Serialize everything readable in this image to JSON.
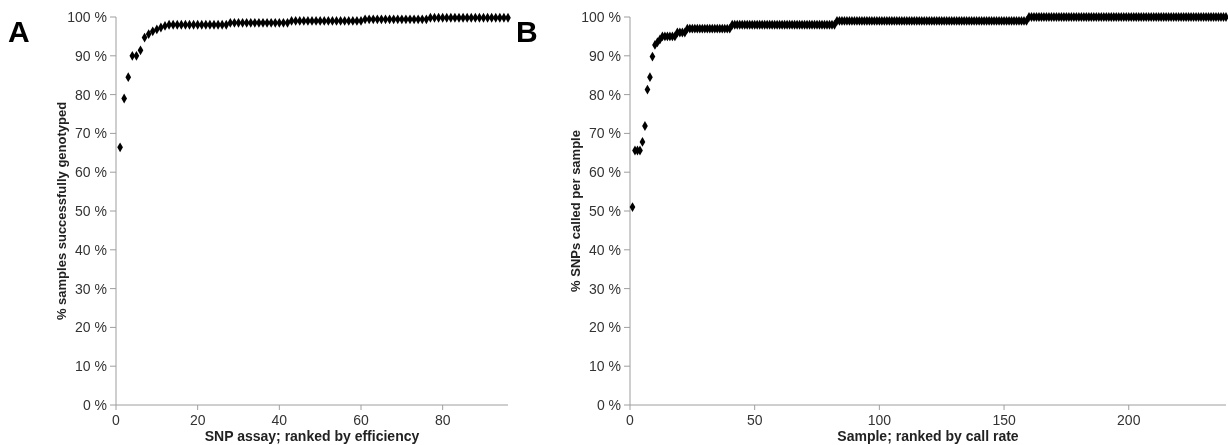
{
  "chart_data": [
    {
      "type": "scatter",
      "xlabel": "SNP assay; ranked by efficiency",
      "ylabel": "% samples successfully genotyped",
      "annotations": [
        "A"
      ],
      "marker": "diamond",
      "grid": false,
      "x": [
        1,
        2,
        3,
        4,
        5,
        6,
        7,
        8,
        9,
        10,
        11,
        12,
        13,
        14,
        15,
        16,
        17,
        18,
        19,
        20,
        21,
        22,
        23,
        24,
        25,
        26,
        27,
        28,
        29,
        30,
        31,
        32,
        33,
        34,
        35,
        36,
        37,
        38,
        39,
        40,
        41,
        42,
        43,
        44,
        45,
        46,
        47,
        48,
        49,
        50,
        51,
        52,
        53,
        54,
        55,
        56,
        57,
        58,
        59,
        60,
        61,
        62,
        63,
        64,
        65,
        66,
        67,
        68,
        69,
        70,
        71,
        72,
        73,
        74,
        75,
        76,
        77,
        78,
        79,
        80,
        81,
        82,
        83,
        84,
        85,
        86,
        87,
        88,
        89,
        90,
        91,
        92,
        93,
        94,
        95,
        96
      ],
      "series": [
        {
          "color": "#000000",
          "values": [
            66.4,
            79,
            84.5,
            90,
            90,
            91.4,
            94.7,
            95.6,
            96.3,
            96.8,
            97.3,
            97.7,
            98,
            98,
            98,
            98,
            98,
            98,
            98,
            98,
            98,
            98,
            98,
            98,
            98,
            98,
            98,
            98.5,
            98.5,
            98.5,
            98.5,
            98.5,
            98.5,
            98.5,
            98.5,
            98.5,
            98.5,
            98.5,
            98.5,
            98.5,
            98.5,
            98.5,
            99,
            99,
            99,
            99,
            99,
            99,
            99,
            99,
            99,
            99,
            99,
            99,
            99,
            99,
            99,
            99,
            99,
            99,
            99.4,
            99.4,
            99.4,
            99.4,
            99.4,
            99.4,
            99.4,
            99.4,
            99.4,
            99.4,
            99.4,
            99.4,
            99.4,
            99.4,
            99.4,
            99.4,
            99.8,
            99.8,
            99.8,
            99.8,
            99.8,
            99.8,
            99.8,
            99.8,
            99.8,
            99.8,
            99.8,
            99.8,
            99.8,
            99.8,
            99.8,
            99.8,
            99.8,
            99.8,
            99.8,
            99.8
          ]
        }
      ],
      "xlim": [
        0,
        96
      ],
      "xticks": [
        0,
        20,
        40,
        60,
        80
      ],
      "ylim": [
        0,
        100
      ],
      "yticks": [
        {
          "value": 0,
          "label": "0 %"
        },
        {
          "value": 10,
          "label": "10 %"
        },
        {
          "value": 20,
          "label": "20 %"
        },
        {
          "value": 30,
          "label": "30 %"
        },
        {
          "value": 40,
          "label": "40 %"
        },
        {
          "value": 50,
          "label": "50 %"
        },
        {
          "value": 60,
          "label": "60 %"
        },
        {
          "value": 70,
          "label": "70 %"
        },
        {
          "value": 80,
          "label": "80 %"
        },
        {
          "value": 90,
          "label": "90 %"
        },
        {
          "value": 100,
          "label": "100 %"
        }
      ]
    },
    {
      "type": "scatter",
      "xlabel": "Sample; ranked by call rate",
      "ylabel": "% SNPs called per sample",
      "annotations": [
        "B"
      ],
      "marker": "diamond",
      "grid": false,
      "x": [
        1,
        2,
        3,
        4,
        5,
        6,
        7,
        8,
        9,
        10,
        11,
        12,
        13,
        14,
        15,
        16,
        17,
        18,
        19,
        20,
        21,
        22,
        23,
        24,
        25,
        26,
        27,
        28,
        29,
        30,
        31,
        32,
        33,
        34,
        35,
        36,
        37,
        38,
        39,
        40,
        41,
        42,
        43,
        44,
        45,
        46,
        47,
        48,
        49,
        50,
        51,
        52,
        53,
        54,
        55,
        56,
        57,
        58,
        59,
        60,
        61,
        62,
        63,
        64,
        65,
        66,
        67,
        68,
        69,
        70,
        71,
        72,
        73,
        74,
        75,
        76,
        77,
        78,
        79,
        80,
        81,
        82,
        83,
        84,
        85,
        86,
        87,
        88,
        89,
        90,
        91,
        92,
        93,
        94,
        95,
        96,
        97,
        98,
        99,
        100,
        101,
        102,
        103,
        104,
        105,
        106,
        107,
        108,
        109,
        110,
        111,
        112,
        113,
        114,
        115,
        116,
        117,
        118,
        119,
        120,
        121,
        122,
        123,
        124,
        125,
        126,
        127,
        128,
        129,
        130,
        131,
        132,
        133,
        134,
        135,
        136,
        137,
        138,
        139,
        140,
        141,
        142,
        143,
        144,
        145,
        146,
        147,
        148,
        149,
        150,
        151,
        152,
        153,
        154,
        155,
        156,
        157,
        158,
        159,
        160,
        161,
        162,
        163,
        164,
        165,
        166,
        167,
        168,
        169,
        170,
        171,
        172,
        173,
        174,
        175,
        176,
        177,
        178,
        179,
        180,
        181,
        182,
        183,
        184,
        185,
        186,
        187,
        188,
        189,
        190,
        191,
        192,
        193,
        194,
        195,
        196,
        197,
        198,
        199,
        200,
        201,
        202,
        203,
        204,
        205,
        206,
        207,
        208,
        209,
        210,
        211,
        212,
        213,
        214,
        215,
        216,
        217,
        218,
        219,
        220,
        221,
        222,
        223,
        224,
        225,
        226,
        227,
        228,
        229,
        230,
        231,
        232,
        233,
        234,
        235,
        236,
        237,
        238,
        239
      ],
      "series": [
        {
          "color": "#000000",
          "values": [
            51,
            65.6,
            65.6,
            65.6,
            67.8,
            71.9,
            81.3,
            84.5,
            89.8,
            92.8,
            93.5,
            94.2,
            95,
            95,
            95,
            95,
            95,
            95,
            96,
            96,
            96,
            96,
            97,
            97,
            97,
            97,
            97,
            97,
            97,
            97,
            97,
            97,
            97,
            97,
            97,
            97,
            97,
            97,
            97,
            97,
            98,
            98,
            98,
            98,
            98,
            98,
            98,
            98,
            98,
            98,
            98,
            98,
            98,
            98,
            98,
            98,
            98,
            98,
            98,
            98,
            98,
            98,
            98,
            98,
            98,
            98,
            98,
            98,
            98,
            98,
            98,
            98,
            98,
            98,
            98,
            98,
            98,
            98,
            98,
            98,
            98,
            98,
            99,
            99,
            99,
            99,
            99,
            99,
            99,
            99,
            99,
            99,
            99,
            99,
            99,
            99,
            99,
            99,
            99,
            99,
            99,
            99,
            99,
            99,
            99,
            99,
            99,
            99,
            99,
            99,
            99,
            99,
            99,
            99,
            99,
            99,
            99,
            99,
            99,
            99,
            99,
            99,
            99,
            99,
            99,
            99,
            99,
            99,
            99,
            99,
            99,
            99,
            99,
            99,
            99,
            99,
            99,
            99,
            99,
            99,
            99,
            99,
            99,
            99,
            99,
            99,
            99,
            99,
            99,
            99,
            99,
            99,
            99,
            99,
            99,
            99,
            99,
            99,
            99,
            100,
            100,
            100,
            100,
            100,
            100,
            100,
            100,
            100,
            100,
            100,
            100,
            100,
            100,
            100,
            100,
            100,
            100,
            100,
            100,
            100,
            100,
            100,
            100,
            100,
            100,
            100,
            100,
            100,
            100,
            100,
            100,
            100,
            100,
            100,
            100,
            100,
            100,
            100,
            100,
            100,
            100,
            100,
            100,
            100,
            100,
            100,
            100,
            100,
            100,
            100,
            100,
            100,
            100,
            100,
            100,
            100,
            100,
            100,
            100,
            100,
            100,
            100,
            100,
            100,
            100,
            100,
            100,
            100,
            100,
            100,
            100,
            100,
            100,
            100,
            100,
            100,
            100,
            100,
            100
          ]
        }
      ],
      "xlim": [
        0,
        239
      ],
      "xticks": [
        0,
        50,
        100,
        150,
        200
      ],
      "ylim": [
        0,
        100
      ],
      "yticks": [
        {
          "value": 0,
          "label": "0 %"
        },
        {
          "value": 10,
          "label": "10 %"
        },
        {
          "value": 20,
          "label": "20 %"
        },
        {
          "value": 30,
          "label": "30 %"
        },
        {
          "value": 40,
          "label": "40 %"
        },
        {
          "value": 50,
          "label": "50 %"
        },
        {
          "value": 60,
          "label": "60 %"
        },
        {
          "value": 70,
          "label": "70 %"
        },
        {
          "value": 80,
          "label": "80 %"
        },
        {
          "value": 90,
          "label": "90 %"
        },
        {
          "value": 100,
          "label": "100 %"
        }
      ]
    }
  ]
}
